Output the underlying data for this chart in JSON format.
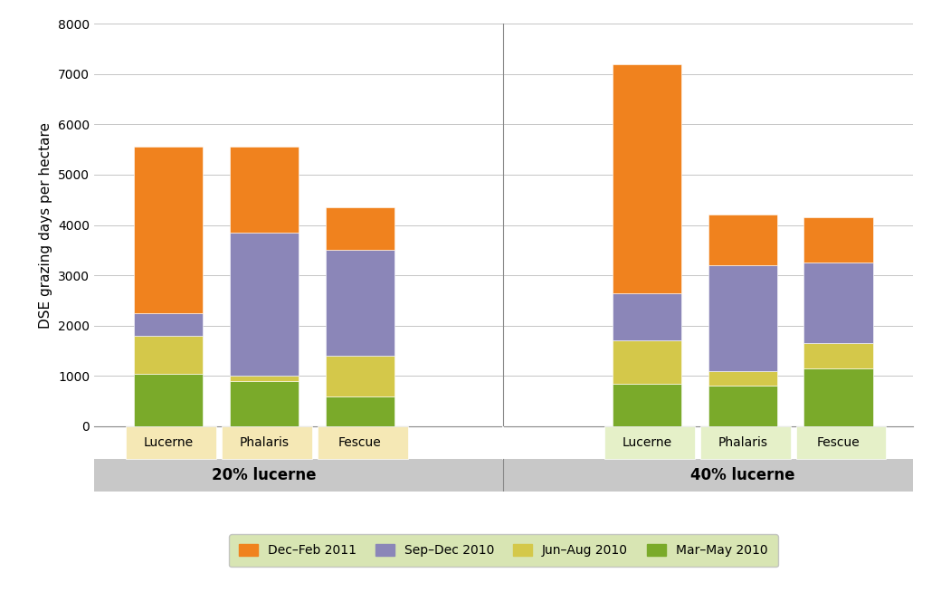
{
  "groups": [
    "20% lucerne",
    "40% lucerne"
  ],
  "bars": [
    "Lucerne",
    "Phalaris",
    "Fescue"
  ],
  "seasons": [
    "Dec–Feb 2011",
    "Sep–Dec 2010",
    "Jun–Aug 2010",
    "Mar–May 2010"
  ],
  "season_colors": [
    "#f0821e",
    "#8b86b8",
    "#d4c84a",
    "#7aaa2a"
  ],
  "values": {
    "20% lucerne": {
      "Lucerne": [
        3300,
        450,
        750,
        1050
      ],
      "Phalaris": [
        1700,
        2850,
        100,
        900
      ],
      "Fescue": [
        850,
        2100,
        800,
        600
      ]
    },
    "40% lucerne": {
      "Lucerne": [
        4550,
        950,
        850,
        850
      ],
      "Phalaris": [
        1000,
        2100,
        300,
        800
      ],
      "Fescue": [
        900,
        1600,
        500,
        1150
      ]
    }
  },
  "ylabel": "DSE grazing days per hectare",
  "ylim": [
    0,
    8000
  ],
  "yticks": [
    0,
    1000,
    2000,
    3000,
    4000,
    5000,
    6000,
    7000,
    8000
  ],
  "bar_width": 0.65,
  "group_label_fontsize": 12,
  "bar_label_fontsize": 10,
  "tick_label_fontsize": 10,
  "ylabel_fontsize": 11,
  "legend_fontsize": 10,
  "background_color": "#ffffff",
  "plot_bg_color": "#ffffff",
  "legend_bg_color": "#cfdfa0",
  "bar_bg_colors": [
    "#f5e8b5",
    "#e5f0c8",
    "#f5e8b5",
    "#e5f0c8",
    "#f5e8b5",
    "#e5f0c8"
  ],
  "group_bg_colors": [
    "#f5e8b5",
    "#e5f0c8"
  ],
  "gray_color": "#c8c8c8",
  "grid_color": "#bbbbbb"
}
